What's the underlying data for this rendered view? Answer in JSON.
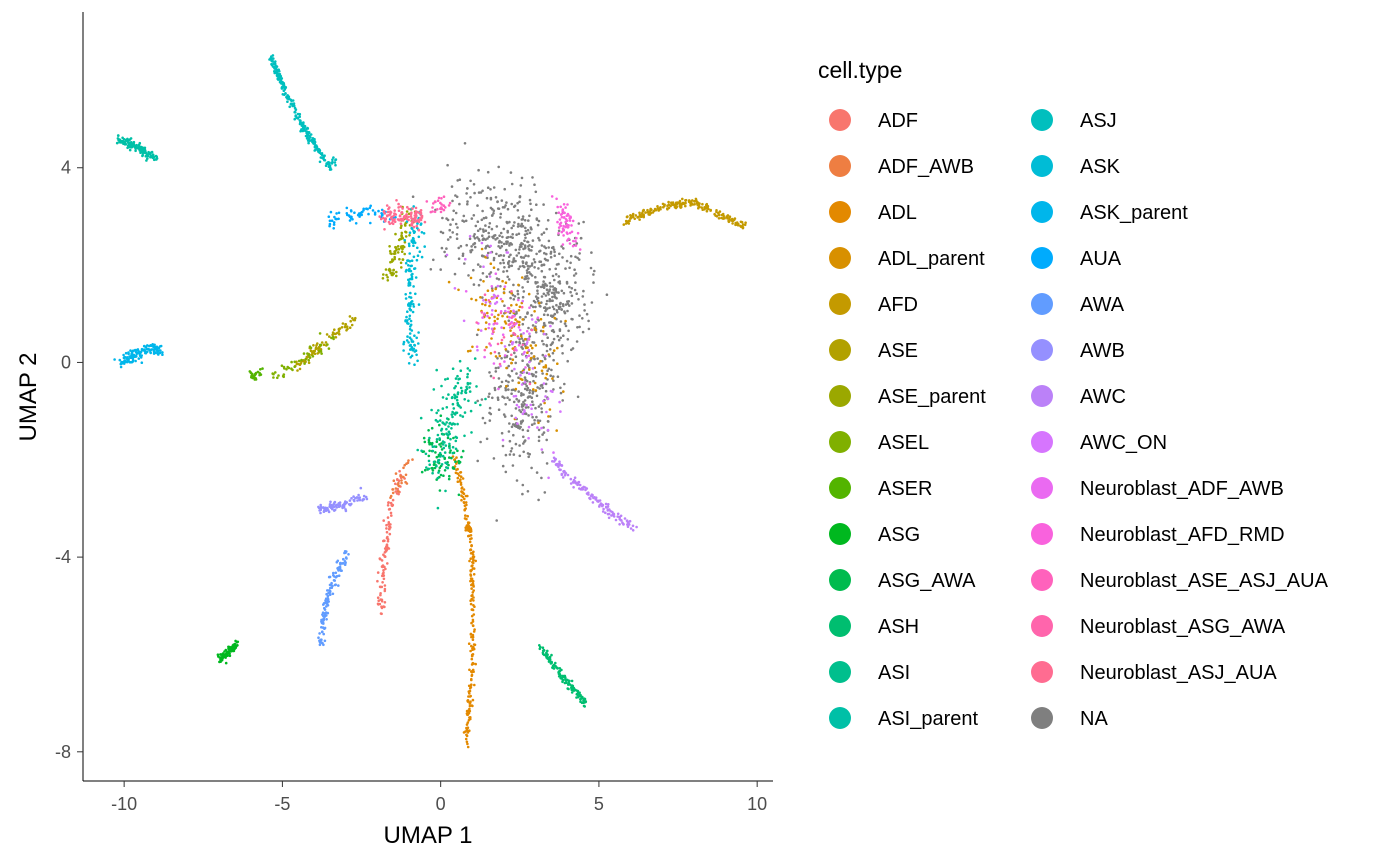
{
  "chart_data": {
    "type": "scatter",
    "xlabel": "UMAP 1",
    "ylabel": "UMAP 2",
    "xlim": [
      -11.3,
      10.5
    ],
    "ylim": [
      -8.6,
      7.2
    ],
    "xticks": [
      -10,
      -5,
      0,
      5,
      10
    ],
    "yticks": [
      -8,
      -4,
      0,
      4
    ],
    "grid": false,
    "legend": {
      "title": "cell.type",
      "placement": "right",
      "columns": 2
    },
    "series": [
      {
        "name": "ADF",
        "color": "#F8766D",
        "path": [
          [
            -1.9,
            -5.2
          ],
          [
            -1.8,
            -4.2
          ],
          [
            -1.6,
            -3.0
          ],
          [
            -1.2,
            -2.3
          ]
        ],
        "n": 110,
        "spread": 0.07
      },
      {
        "name": "ADF_AWB",
        "color": "#EE7E42",
        "path": [
          [
            -1.6,
            -2.8
          ],
          [
            -1.0,
            -2.1
          ]
        ],
        "n": 25,
        "spread": 0.08
      },
      {
        "name": "ADL",
        "color": "#E38900",
        "path": [
          [
            0.8,
            -7.9
          ],
          [
            1.0,
            -6.3
          ],
          [
            1.0,
            -4.0
          ],
          [
            0.7,
            -2.6
          ],
          [
            0.4,
            -1.9
          ]
        ],
        "n": 230,
        "spread": 0.04
      },
      {
        "name": "ADL_parent",
        "color": "#D89000",
        "path": [
          [
            1.2,
            1.4
          ],
          [
            2.5,
            0.6
          ],
          [
            3.3,
            -0.5
          ]
        ],
        "n": 140,
        "spread": 0.45
      },
      {
        "name": "AFD",
        "color": "#C49A00",
        "path": [
          [
            5.8,
            2.9
          ],
          [
            7.0,
            3.2
          ],
          [
            8.0,
            3.3
          ],
          [
            9.6,
            2.8
          ]
        ],
        "n": 210,
        "spread": 0.04
      },
      {
        "name": "ASE",
        "color": "#B2A100",
        "path": [
          [
            -2.7,
            0.9
          ],
          [
            -3.7,
            0.4
          ],
          [
            -4.6,
            -0.1
          ]
        ],
        "n": 80,
        "spread": 0.06
      },
      {
        "name": "ASE_parent",
        "color": "#9BA800",
        "path": [
          [
            -1.7,
            1.7
          ],
          [
            -1.3,
            2.5
          ],
          [
            -0.9,
            3.1
          ]
        ],
        "n": 90,
        "spread": 0.12
      },
      {
        "name": "ASEL",
        "color": "#80B000",
        "path": [
          [
            -3.2,
            0.6
          ],
          [
            -4.3,
            0.1
          ],
          [
            -5.3,
            -0.3
          ]
        ],
        "n": 45,
        "spread": 0.07
      },
      {
        "name": "ASER",
        "color": "#53B400",
        "path": [
          [
            -6.0,
            -0.3
          ],
          [
            -5.7,
            -0.2
          ]
        ],
        "n": 25,
        "spread": 0.05
      },
      {
        "name": "ASG",
        "color": "#00B81F",
        "path": [
          [
            -7.0,
            -6.1
          ],
          [
            -6.4,
            -5.8
          ]
        ],
        "n": 80,
        "spread": 0.05
      },
      {
        "name": "ASG_AWA",
        "color": "#00BB4E",
        "path": [
          [
            -0.3,
            -1.5
          ],
          [
            0.2,
            -2.3
          ]
        ],
        "n": 80,
        "spread": 0.25
      },
      {
        "name": "ASH",
        "color": "#00BE70",
        "path": [
          [
            3.1,
            -5.8
          ],
          [
            3.9,
            -6.5
          ],
          [
            4.6,
            -7.0
          ]
        ],
        "n": 130,
        "spread": 0.04
      },
      {
        "name": "ASI",
        "color": "#00BF8D",
        "path": [
          [
            0.8,
            -0.3
          ],
          [
            0.2,
            -1.4
          ],
          [
            -0.2,
            -2.2
          ]
        ],
        "n": 150,
        "spread": 0.3
      },
      {
        "name": "ASI_parent",
        "color": "#00C0A7",
        "path": [
          [
            -10.2,
            4.6
          ],
          [
            -9.6,
            4.4
          ],
          [
            -9.0,
            4.2
          ]
        ],
        "n": 130,
        "spread": 0.05
      },
      {
        "name": "ASJ",
        "color": "#00BFBE",
        "path": [
          [
            -5.4,
            6.3
          ],
          [
            -4.5,
            5.0
          ],
          [
            -3.5,
            4.0
          ],
          [
            -3.3,
            4.2
          ]
        ],
        "n": 230,
        "spread": 0.04
      },
      {
        "name": "ASK",
        "color": "#00BCD6",
        "path": [
          [
            -0.7,
            3.1
          ],
          [
            -1.0,
            1.5
          ],
          [
            -0.9,
            0.0
          ]
        ],
        "n": 150,
        "spread": 0.12
      },
      {
        "name": "ASK_parent",
        "color": "#00B6EB",
        "path": [
          [
            -10.2,
            0.0
          ],
          [
            -9.2,
            0.3
          ],
          [
            -8.8,
            0.25
          ]
        ],
        "n": 130,
        "spread": 0.06
      },
      {
        "name": "AUA",
        "color": "#00ABFD",
        "path": [
          [
            -3.6,
            2.9
          ],
          [
            -2.4,
            3.1
          ],
          [
            -1.5,
            3.0
          ]
        ],
        "n": 60,
        "spread": 0.08
      },
      {
        "name": "AWA",
        "color": "#619CFF",
        "path": [
          [
            -3.8,
            -5.8
          ],
          [
            -3.6,
            -4.8
          ],
          [
            -3.2,
            -4.2
          ],
          [
            -2.9,
            -3.9
          ]
        ],
        "n": 120,
        "spread": 0.06
      },
      {
        "name": "AWB",
        "color": "#9590FF",
        "path": [
          [
            -3.8,
            -3.0
          ],
          [
            -2.8,
            -2.9
          ],
          [
            -2.4,
            -2.7
          ]
        ],
        "n": 90,
        "spread": 0.06
      },
      {
        "name": "AWC",
        "color": "#BB81F8",
        "path": [
          [
            3.5,
            -2.0
          ],
          [
            4.5,
            -2.6
          ],
          [
            5.6,
            -3.2
          ],
          [
            6.2,
            -3.4
          ]
        ],
        "n": 130,
        "spread": 0.05
      },
      {
        "name": "AWC_ON",
        "color": "#D675FE",
        "path": [
          [
            1.2,
            2.2
          ],
          [
            2.8,
            0.0
          ],
          [
            3.0,
            -1.5
          ]
        ],
        "n": 90,
        "spread": 0.5
      },
      {
        "name": "Neuroblast_ADF_AWB",
        "color": "#EA6AF1",
        "path": [
          [
            1.5,
            1.0
          ],
          [
            2.8,
            0.5
          ]
        ],
        "n": 50,
        "spread": 0.4
      },
      {
        "name": "Neuroblast_AFD_RMD",
        "color": "#F962DD",
        "path": [
          [
            3.8,
            3.2
          ],
          [
            4.2,
            2.4
          ]
        ],
        "n": 70,
        "spread": 0.12
      },
      {
        "name": "Neuroblast_ASE_ASJ_AUA",
        "color": "#FF62BC",
        "path": [
          [
            -0.3,
            3.2
          ],
          [
            0.3,
            3.2
          ]
        ],
        "n": 25,
        "spread": 0.1
      },
      {
        "name": "Neuroblast_ASG_AWA",
        "color": "#FF65AC",
        "path": [
          [
            1.6,
            0.9
          ],
          [
            2.4,
            0.3
          ]
        ],
        "n": 30,
        "spread": 0.35
      },
      {
        "name": "Neuroblast_ASJ_AUA",
        "color": "#FF6C91",
        "path": [
          [
            -1.8,
            3.0
          ],
          [
            -0.6,
            3.0
          ]
        ],
        "n": 110,
        "spread": 0.1
      },
      {
        "name": "NA",
        "color": "#7F7F7F",
        "path": [
          [
            0.5,
            3.0
          ],
          [
            2.5,
            2.5
          ],
          [
            3.8,
            1.8
          ],
          [
            2.6,
            -0.2
          ],
          [
            2.5,
            -1.8
          ]
        ],
        "n": 900,
        "spread": 0.55
      }
    ]
  }
}
